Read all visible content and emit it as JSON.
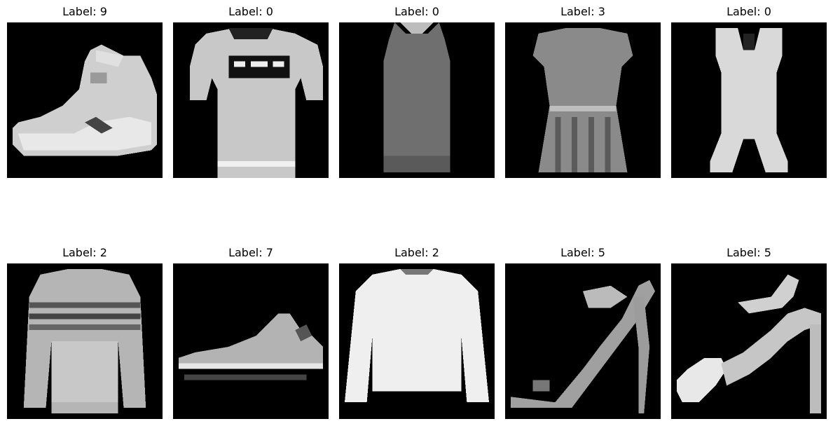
{
  "grid": {
    "rows": 2,
    "cols": 5,
    "items": [
      {
        "title": "Label: 9",
        "depicts": "ankle-boot"
      },
      {
        "title": "Label: 0",
        "depicts": "t-shirt"
      },
      {
        "title": "Label: 0",
        "depicts": "tank-top"
      },
      {
        "title": "Label: 3",
        "depicts": "dress"
      },
      {
        "title": "Label: 0",
        "depicts": "tank-top"
      },
      {
        "title": "Label: 2",
        "depicts": "pullover"
      },
      {
        "title": "Label: 7",
        "depicts": "sneaker"
      },
      {
        "title": "Label: 2",
        "depicts": "pullover"
      },
      {
        "title": "Label: 5",
        "depicts": "sandal"
      },
      {
        "title": "Label: 5",
        "depicts": "sandal"
      }
    ]
  },
  "colors": {
    "background": "#ffffff",
    "image_background": "#000000",
    "title_text": "#000000"
  }
}
